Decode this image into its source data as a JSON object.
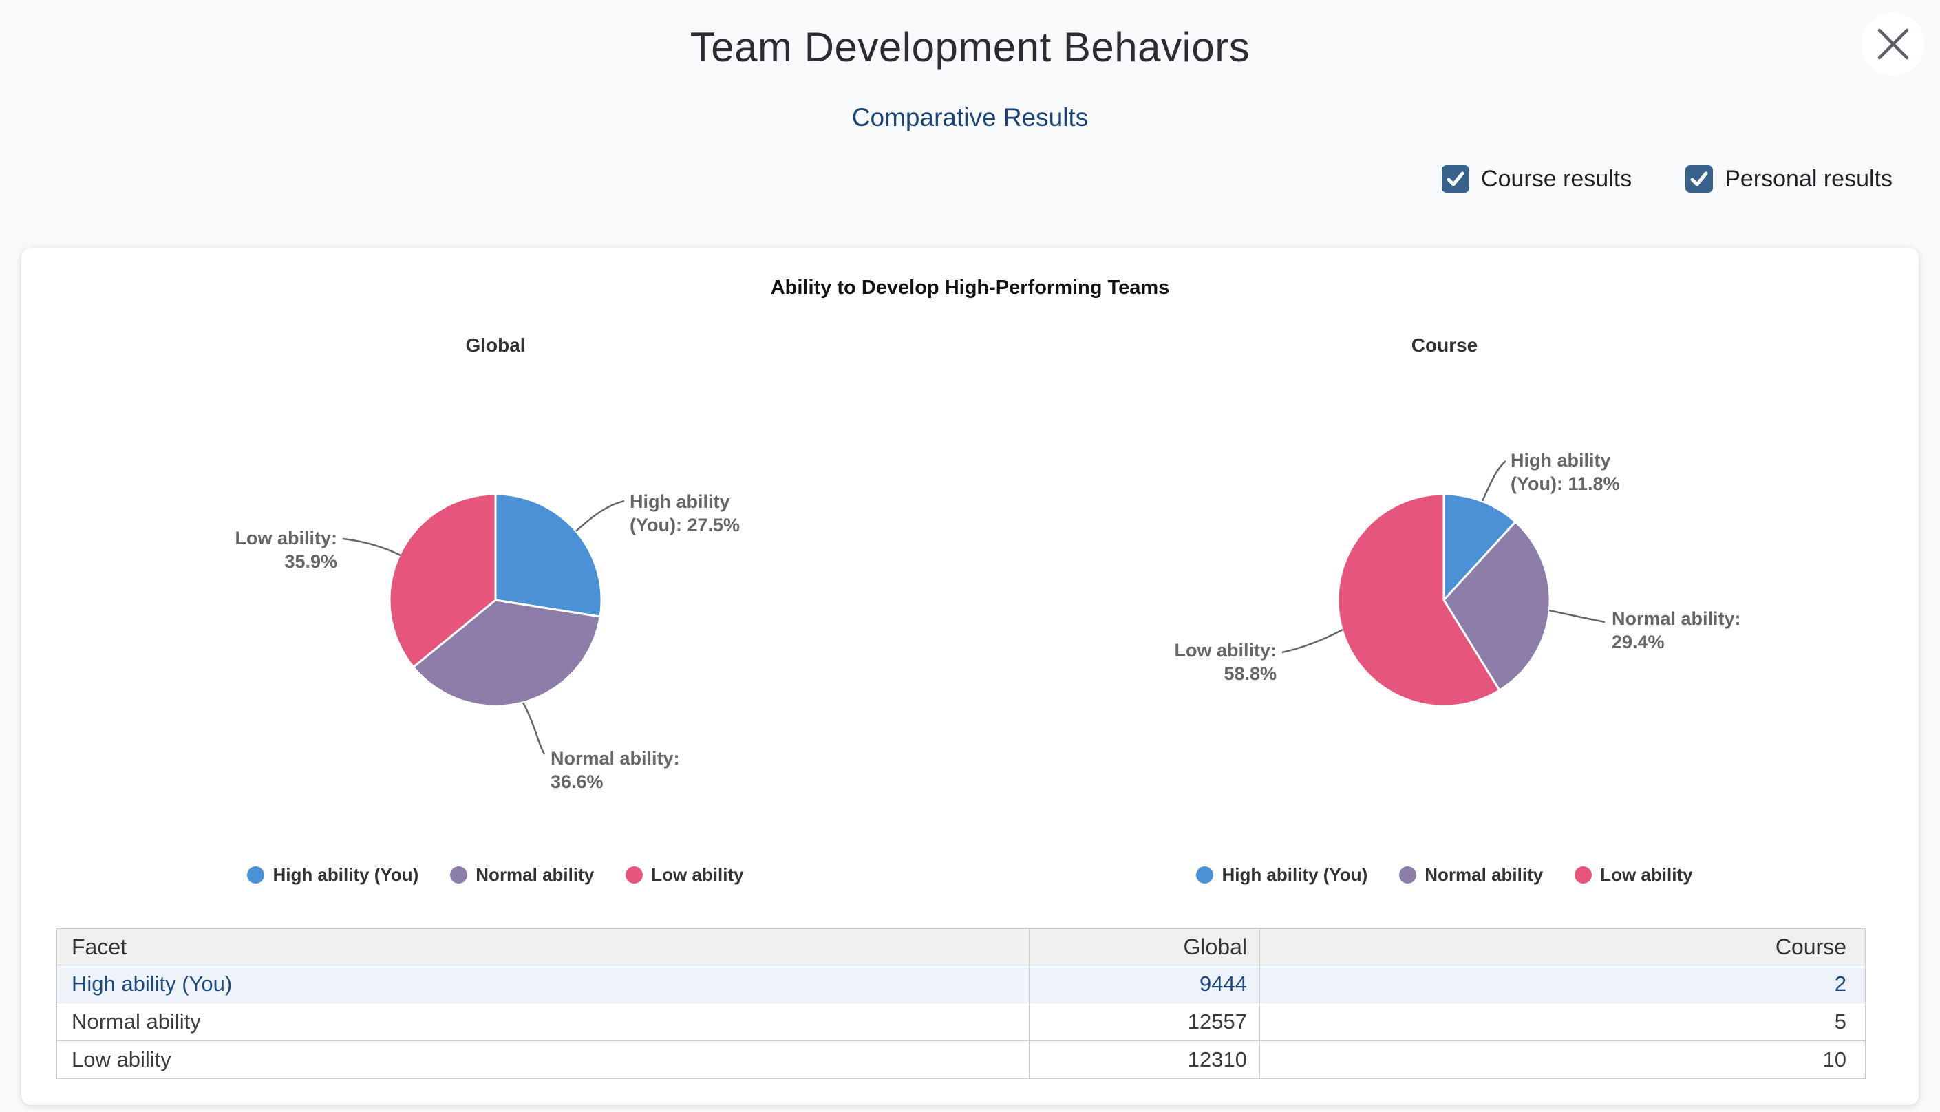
{
  "header": {
    "title": "Team Development Behaviors",
    "subtitle": "Comparative Results",
    "checkboxes": [
      {
        "label": "Course results",
        "checked": true
      },
      {
        "label": "Personal results",
        "checked": true
      }
    ]
  },
  "colors": {
    "high_ability_blue": "#4a91d6",
    "normal_ability_purple": "#8c7ea8",
    "low_ability_pink": "#e6557b",
    "subtitle_navy": "#1a4476",
    "checkbox_blue": "#38618c",
    "connector_gray": "#666666",
    "highlight_row_bg": "#edf3f9",
    "highlight_row_text": "#1c4a7e"
  },
  "card": {
    "heading": "Ability to Develop High-Performing Teams"
  },
  "chart_data": [
    {
      "type": "pie",
      "title": "Global",
      "slices": [
        {
          "label": "High ability (You)",
          "pct": 27.5,
          "count": 9444,
          "color": "#4a91d6",
          "data_label": "High ability\n(You): 27.5%"
        },
        {
          "label": "Normal ability",
          "pct": 36.6,
          "count": 12557,
          "color": "#8c7ea8",
          "data_label": "Normal ability:\n36.6%"
        },
        {
          "label": "Low ability",
          "pct": 35.9,
          "count": 12310,
          "color": "#e6557b",
          "data_label": "Low ability:\n35.9%"
        }
      ],
      "legend": [
        "High ability (You)",
        "Normal ability",
        "Low ability"
      ],
      "legend_position": "bottom",
      "start_angle_deg": 0,
      "direction": "clockwise"
    },
    {
      "type": "pie",
      "title": "Course",
      "slices": [
        {
          "label": "High ability (You)",
          "pct": 11.8,
          "count": 2,
          "color": "#4a91d6",
          "data_label": "High ability\n(You): 11.8%"
        },
        {
          "label": "Normal ability",
          "pct": 29.4,
          "count": 5,
          "color": "#8c7ea8",
          "data_label": "Normal ability:\n29.4%"
        },
        {
          "label": "Low ability",
          "pct": 58.8,
          "count": 10,
          "color": "#e6557b",
          "data_label": "Low ability:\n58.8%"
        }
      ],
      "legend": [
        "High ability (You)",
        "Normal ability",
        "Low ability"
      ],
      "legend_position": "bottom",
      "start_angle_deg": 0,
      "direction": "clockwise"
    }
  ],
  "table": {
    "columns": [
      "Facet",
      "Global",
      "Course"
    ],
    "rows": [
      {
        "facet": "High ability (You)",
        "global": "9444",
        "course": "2",
        "highlighted": true
      },
      {
        "facet": "Normal ability",
        "global": "12557",
        "course": "5",
        "highlighted": false
      },
      {
        "facet": "Low ability",
        "global": "12310",
        "course": "10",
        "highlighted": false
      }
    ]
  }
}
